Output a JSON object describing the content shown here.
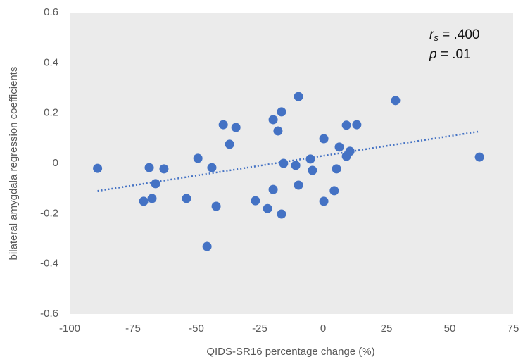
{
  "chart_data": {
    "type": "scatter",
    "x_label": "QIDS-SR16 percentage change (%)",
    "y_label": "bilateral amygdala regression coefficients",
    "annotation": {
      "r": "r",
      "sub": "s",
      "r_text": " = .400",
      "p": "p",
      "p_text": " = .01"
    },
    "xlim": [
      -100,
      75
    ],
    "xticks": [
      -100,
      -75,
      -50,
      -25,
      0,
      25,
      50,
      75
    ],
    "ylim": [
      -0.6,
      0.6
    ],
    "yticks": [
      -0.6,
      -0.4,
      -0.2,
      0,
      0.2,
      0.4,
      0.6
    ],
    "color": "#4472c4",
    "background": "#ebebeb",
    "x": [
      -89,
      -68.6,
      -62.8,
      -66.1,
      -70.8,
      -67.5,
      -53.9,
      -49.4,
      -43.9,
      -42.2,
      -45.8,
      -39.4,
      -36.9,
      -34.4,
      -26.7,
      -21.9,
      -19.7,
      -19.7,
      -17.8,
      -16.4,
      -16.4,
      -15.6,
      -10.8,
      -9.7,
      -9.7,
      -5,
      -4.2,
      0.3,
      0.3,
      4.4,
      5.3,
      6.4,
      9.2,
      9.2,
      10.6,
      13.3,
      28.6,
      61.7
    ],
    "values": [
      -0.02,
      -0.017,
      -0.022,
      -0.081,
      -0.151,
      -0.14,
      -0.14,
      0.02,
      -0.017,
      -0.171,
      -0.331,
      0.154,
      0.076,
      0.143,
      -0.149,
      -0.18,
      -0.104,
      0.174,
      0.129,
      0.205,
      -0.202,
      0.0,
      -0.008,
      0.266,
      -0.087,
      0.017,
      -0.028,
      0.098,
      -0.151,
      -0.109,
      -0.022,
      0.065,
      0.152,
      0.028,
      0.048,
      0.154,
      0.25,
      0.025
    ],
    "trendline": {
      "x": [
        -89,
        61.7
      ],
      "values": [
        -0.11,
        0.127
      ],
      "color": "#4472c4"
    }
  }
}
